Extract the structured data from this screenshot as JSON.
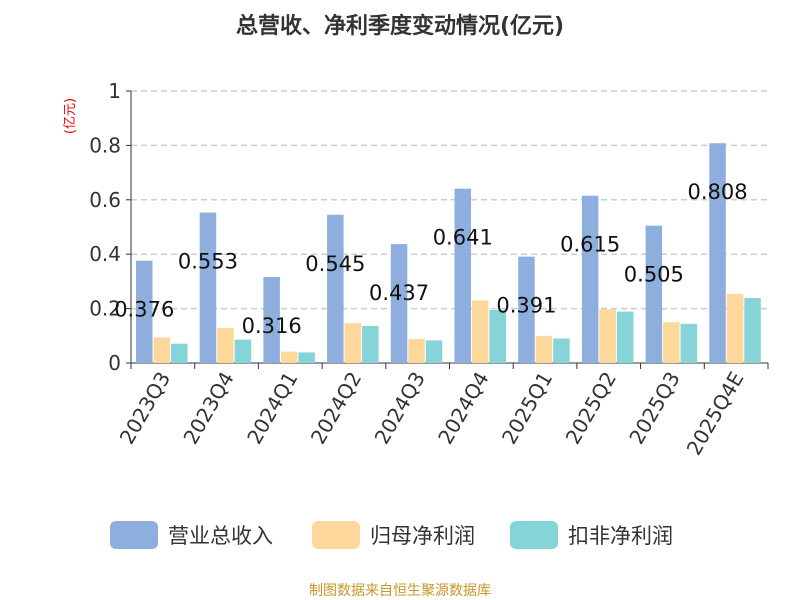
{
  "chart_data": {
    "type": "bar",
    "title": "总营收、净利季度变动情况(亿元)",
    "ylabel": "(亿元)",
    "xlabel": "",
    "ylim": [
      0,
      1
    ],
    "yticks": [
      "0",
      "0.2",
      "0.4",
      "0.6",
      "0.8",
      "1"
    ],
    "grid": true,
    "legend_position": "bottom",
    "categories": [
      "2023Q3",
      "2023Q4",
      "2024Q1",
      "2024Q2",
      "2024Q3",
      "2024Q4",
      "2025Q1",
      "2025Q2",
      "2025Q3",
      "2025Q4E"
    ],
    "series": [
      {
        "name": "营业总收入",
        "color": "#8eaedd",
        "values": [
          0.376,
          0.553,
          0.316,
          0.545,
          0.437,
          0.641,
          0.391,
          0.615,
          0.505,
          0.808
        ],
        "labels": [
          "0.376",
          "0.553",
          "0.316",
          "0.545",
          "0.437",
          "0.641",
          "0.391",
          "0.615",
          "0.505",
          "0.808"
        ]
      },
      {
        "name": "归母净利润",
        "color": "#fed89b",
        "values": [
          0.094,
          0.129,
          0.042,
          0.146,
          0.088,
          0.23,
          0.1,
          0.197,
          0.15,
          0.254
        ]
      },
      {
        "name": "扣非净利润",
        "color": "#84d4d8",
        "values": [
          0.071,
          0.086,
          0.039,
          0.136,
          0.083,
          0.195,
          0.09,
          0.189,
          0.144,
          0.239
        ]
      }
    ]
  },
  "footer": "制图数据来自恒生聚源数据库"
}
